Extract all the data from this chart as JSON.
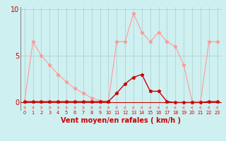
{
  "xlabel": "Vent moyen/en rafales ( km/h )",
  "background_color": "#cff0f0",
  "grid_color": "#aacccc",
  "x_values": [
    0,
    1,
    2,
    3,
    4,
    5,
    6,
    7,
    8,
    9,
    10,
    11,
    12,
    13,
    14,
    15,
    16,
    17,
    18,
    19,
    20,
    21,
    22,
    23
  ],
  "rafales_values": [
    0.1,
    6.5,
    5.0,
    4.0,
    3.0,
    2.2,
    1.5,
    1.0,
    0.5,
    0.2,
    0.1,
    6.5,
    6.5,
    9.5,
    7.5,
    6.5,
    7.5,
    6.5,
    6.0,
    4.0,
    0.1,
    0.1,
    6.5,
    6.5
  ],
  "moyen_values": [
    0.1,
    0.1,
    0.1,
    0.1,
    0.1,
    0.1,
    0.1,
    0.1,
    0.1,
    0.1,
    0.1,
    1.0,
    2.0,
    2.7,
    3.0,
    1.2,
    1.2,
    0.1,
    0.0,
    0.0,
    0.0,
    0.0,
    0.1,
    0.1
  ],
  "rafales_color": "#ff9999",
  "moyen_color": "#cc0000",
  "ylim": [
    0,
    10
  ],
  "yticks": [
    0,
    5,
    10
  ],
  "xlim": [
    -0.5,
    23.5
  ]
}
